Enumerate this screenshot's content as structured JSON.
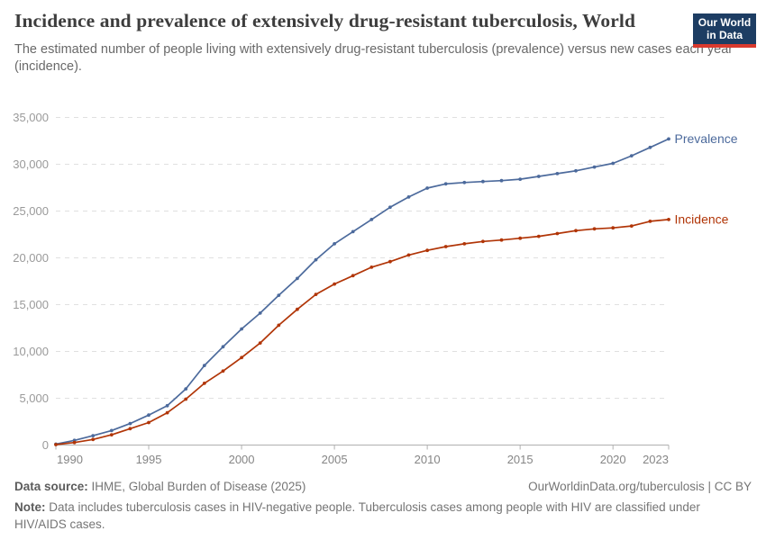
{
  "header": {
    "title": "Incidence and prevalence of extensively drug-resistant tuberculosis, World",
    "subtitle": "The estimated number of people living with extensively drug-resistant tuberculosis (prevalence) versus new cases each year (incidence)."
  },
  "logo": {
    "line1": "Our World",
    "line2": "in Data",
    "bg_color": "#1d3d63",
    "bar_color": "#d93a2e"
  },
  "chart_data": {
    "type": "line",
    "title": "Incidence and prevalence of extensively drug-resistant tuberculosis, World",
    "x": [
      1990,
      1991,
      1992,
      1993,
      1994,
      1995,
      1996,
      1997,
      1998,
      1999,
      2000,
      2001,
      2002,
      2003,
      2004,
      2005,
      2006,
      2007,
      2008,
      2009,
      2010,
      2011,
      2012,
      2013,
      2014,
      2015,
      2016,
      2017,
      2018,
      2019,
      2020,
      2021,
      2022,
      2023
    ],
    "series": [
      {
        "name": "Prevalence",
        "color": "#4c6a9c",
        "values": [
          100,
          500,
          1000,
          1550,
          2300,
          3200,
          4200,
          6000,
          8500,
          10500,
          12400,
          14100,
          16000,
          17800,
          19800,
          21500,
          22800,
          24100,
          25400,
          26500,
          27450,
          27900,
          28050,
          28150,
          28250,
          28400,
          28700,
          29000,
          29300,
          29700,
          30100,
          30900,
          31800,
          32700
        ]
      },
      {
        "name": "Incidence",
        "color": "#b13507",
        "values": [
          50,
          270,
          600,
          1100,
          1750,
          2400,
          3450,
          4900,
          6600,
          7900,
          9350,
          10900,
          12800,
          14500,
          16100,
          17200,
          18100,
          19000,
          19600,
          20300,
          20800,
          21200,
          21500,
          21750,
          21900,
          22100,
          22300,
          22600,
          22900,
          23100,
          23200,
          23400,
          23900,
          24100
        ]
      }
    ],
    "xticks": [
      1990,
      1995,
      2000,
      2005,
      2010,
      2015,
      2020,
      2023
    ],
    "yticks": [
      0,
      5000,
      10000,
      15000,
      20000,
      25000,
      30000,
      35000
    ],
    "xlim": [
      1990,
      2023
    ],
    "ylim": [
      0,
      35000
    ],
    "grid": "horizontal-dashed",
    "legend": "line-end-labels",
    "xlabel": "",
    "ylabel": ""
  },
  "footer": {
    "source_label": "Data source:",
    "source_text": " IHME, Global Burden of Disease (2025)",
    "link_text": "OurWorldinData.org/tuberculosis | CC BY",
    "note_label": "Note:",
    "note_text": " Data includes tuberculosis cases in HIV-negative people. Tuberculosis cases among people with HIV are classified under HIV/AIDS cases."
  },
  "colors": {
    "grid": "#e0e0e0",
    "axis": "#b0b0b0",
    "y_tick_label": "#9a9a9a",
    "x_tick_label": "#858585"
  }
}
